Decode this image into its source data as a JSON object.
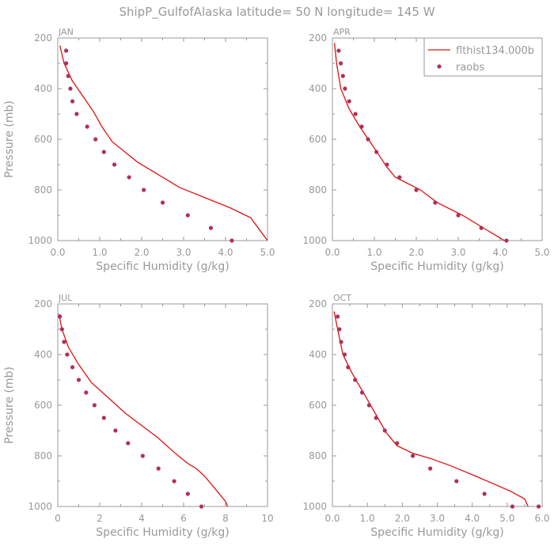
{
  "title": "ShipP_GulfofAlaska  latitude= 50 N longitude= 145 W",
  "colors": {
    "axis": "#999999",
    "model_line": "#e01010",
    "obs_marker": "#b0305a"
  },
  "legend": {
    "model_label": "flthist134.000b",
    "obs_label": "raobs",
    "placement": "top-right of APR panel"
  },
  "chart_data": [
    {
      "type": "line",
      "panel_label": "JAN",
      "xlabel": "Specific Humidity (g/kg)",
      "ylabel": "Pressure (mb)",
      "xlim": [
        0,
        5
      ],
      "ylim": [
        200,
        1000
      ],
      "y_inverted": true,
      "xticks": [
        0,
        1,
        2,
        3,
        4,
        5
      ],
      "xtick_labels": [
        "0.0",
        "1.0",
        "2.0",
        "3.0",
        "4.0",
        "5.0"
      ],
      "yticks": [
        200,
        400,
        600,
        800,
        1000
      ],
      "series": [
        {
          "name": "flthist134.000b",
          "kind": "line",
          "x": [
            0.05,
            0.15,
            0.35,
            0.6,
            0.85,
            1.05,
            1.3,
            1.6,
            1.9,
            2.3,
            2.9,
            3.5,
            4.1,
            4.6,
            5.0
          ],
          "y": [
            230,
            300,
            370,
            430,
            490,
            550,
            610,
            650,
            690,
            730,
            790,
            830,
            870,
            910,
            1000
          ]
        },
        {
          "name": "raobs",
          "kind": "markers",
          "x": [
            0.2,
            0.2,
            0.25,
            0.3,
            0.35,
            0.45,
            0.7,
            0.9,
            1.1,
            1.35,
            1.7,
            2.05,
            2.5,
            3.1,
            3.65,
            4.15
          ],
          "y": [
            250,
            300,
            350,
            400,
            450,
            500,
            550,
            600,
            650,
            700,
            750,
            800,
            850,
            900,
            950,
            1000
          ]
        }
      ]
    },
    {
      "type": "line",
      "panel_label": "APR",
      "xlabel": "Specific Humidity (g/kg)",
      "ylabel": "",
      "xlim": [
        0,
        5
      ],
      "ylim": [
        200,
        1000
      ],
      "y_inverted": true,
      "xticks": [
        0,
        1,
        2,
        3,
        4,
        5
      ],
      "xtick_labels": [
        "0.0",
        "1.0",
        "2.0",
        "3.0",
        "4.0",
        "5.0"
      ],
      "yticks": [
        200,
        400,
        600,
        800,
        1000
      ],
      "series": [
        {
          "name": "flthist134.000b",
          "kind": "line",
          "x": [
            0.05,
            0.1,
            0.2,
            0.4,
            0.65,
            0.9,
            1.1,
            1.3,
            1.5,
            2.1,
            2.5,
            3.1,
            3.6,
            3.9,
            4.1
          ],
          "y": [
            220,
            300,
            400,
            480,
            550,
            610,
            660,
            710,
            750,
            800,
            850,
            900,
            950,
            980,
            1000
          ]
        },
        {
          "name": "raobs",
          "kind": "markers",
          "x": [
            0.15,
            0.2,
            0.25,
            0.3,
            0.4,
            0.55,
            0.7,
            0.85,
            1.05,
            1.3,
            1.6,
            2.0,
            2.45,
            3.0,
            3.55,
            4.15
          ],
          "y": [
            250,
            300,
            350,
            400,
            450,
            500,
            550,
            600,
            650,
            700,
            750,
            800,
            850,
            900,
            950,
            1000
          ]
        }
      ]
    },
    {
      "type": "line",
      "panel_label": "JUL",
      "xlabel": "Specific Humidity (g/kg)",
      "ylabel": "Pressure (mb)",
      "xlim": [
        0,
        10
      ],
      "ylim": [
        200,
        1000
      ],
      "y_inverted": true,
      "xticks": [
        0,
        2,
        4,
        6,
        8,
        10
      ],
      "xtick_labels": [
        "0",
        "2",
        "4",
        "6",
        "8",
        "10"
      ],
      "yticks": [
        200,
        400,
        600,
        800,
        1000
      ],
      "series": [
        {
          "name": "flthist134.000b",
          "kind": "line",
          "x": [
            0.05,
            0.2,
            0.5,
            1.0,
            1.6,
            2.4,
            3.2,
            4.0,
            4.8,
            5.6,
            6.2,
            6.6,
            7.0,
            7.5,
            8.0,
            8.1
          ],
          "y": [
            240,
            300,
            370,
            440,
            510,
            570,
            630,
            680,
            730,
            790,
            830,
            850,
            880,
            930,
            980,
            1000
          ]
        },
        {
          "name": "raobs",
          "kind": "markers",
          "x": [
            0.1,
            0.2,
            0.3,
            0.45,
            0.7,
            1.0,
            1.35,
            1.75,
            2.2,
            2.75,
            3.35,
            4.05,
            4.8,
            5.55,
            6.2,
            6.85
          ],
          "y": [
            250,
            300,
            350,
            400,
            450,
            500,
            550,
            600,
            650,
            700,
            750,
            800,
            850,
            900,
            950,
            1000
          ]
        }
      ]
    },
    {
      "type": "line",
      "panel_label": "OCT",
      "xlabel": "Specific Humidity (g/kg)",
      "ylabel": "",
      "xlim": [
        0,
        6
      ],
      "ylim": [
        200,
        1000
      ],
      "y_inverted": true,
      "xticks": [
        0,
        1,
        2,
        3,
        4,
        5,
        6
      ],
      "xtick_labels": [
        "0.0",
        "1.0",
        "2.0",
        "3.0",
        "4.0",
        "5.0",
        "6.0"
      ],
      "yticks": [
        200,
        400,
        600,
        800,
        1000
      ],
      "series": [
        {
          "name": "flthist134.000b",
          "kind": "line",
          "x": [
            0.05,
            0.15,
            0.3,
            0.55,
            0.8,
            1.05,
            1.3,
            1.55,
            1.85,
            2.3,
            2.8,
            3.4,
            4.1,
            4.6,
            5.1,
            5.5,
            5.6
          ],
          "y": [
            230,
            300,
            400,
            470,
            530,
            590,
            650,
            710,
            760,
            790,
            810,
            840,
            880,
            910,
            940,
            970,
            1000
          ]
        },
        {
          "name": "raobs",
          "kind": "markers",
          "x": [
            0.15,
            0.2,
            0.25,
            0.35,
            0.45,
            0.65,
            0.85,
            1.05,
            1.25,
            1.5,
            1.85,
            2.3,
            2.8,
            3.55,
            4.35,
            5.15,
            5.9
          ],
          "y": [
            250,
            300,
            350,
            400,
            450,
            500,
            550,
            600,
            650,
            700,
            750,
            800,
            850,
            900,
            950,
            1000,
            1000
          ]
        }
      ]
    }
  ]
}
